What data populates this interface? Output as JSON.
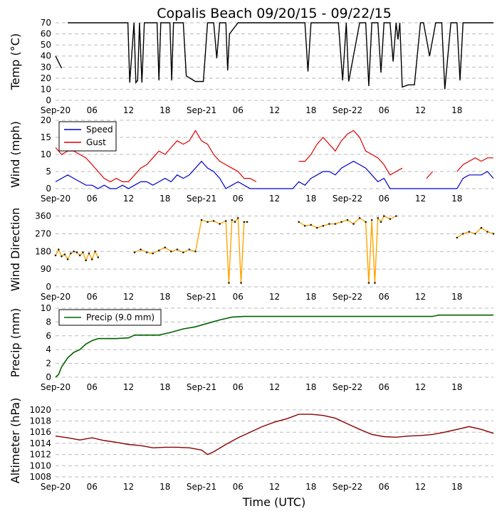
{
  "title": "Copalis Beach 09/20/15 - 09/22/15",
  "x_axis_label": "Time (UTC)",
  "x_tick_labels": [
    "Sep-20",
    "06",
    "12",
    "18",
    "Sep-21",
    "06",
    "12",
    "18",
    "Sep-22",
    "06",
    "12",
    "18"
  ],
  "colors": {
    "temp": "#000000",
    "speed": "#0000cc",
    "gust": "#dd0000",
    "dir": "#ffa500",
    "precip": "#006400",
    "alt": "#8b0000",
    "grid": "#bbbbbb"
  },
  "chart_data": [
    {
      "type": "line",
      "name": "temperature",
      "ylabel": "Temp (°C)",
      "ylim": [
        0,
        70
      ],
      "yticks": [
        "0",
        "10",
        "20",
        "30",
        "40",
        "50",
        "60",
        "70"
      ],
      "series": [
        {
          "name": "Temp",
          "x": [
            0,
            1,
            2,
            3,
            4,
            6,
            8,
            10,
            11.9,
            12.2,
            12.9,
            13.2,
            13.5,
            13.8,
            14.2,
            14.6,
            15,
            16.7,
            17,
            17.3,
            18.8,
            19.1,
            19.4,
            20.3,
            21,
            21.5,
            23,
            23.5,
            24.3,
            25,
            26,
            26.5,
            27,
            27.5,
            28,
            28.3,
            28.6,
            30,
            33,
            36,
            41,
            41.5,
            42,
            46.5,
            47.2,
            47.8,
            48.2,
            50,
            51,
            51.5,
            52,
            53,
            53.5,
            54,
            55,
            55.5,
            56,
            56.3,
            56.6,
            57,
            58,
            59,
            60,
            60.5,
            61.5,
            62.5,
            63,
            63.5,
            64,
            65,
            66,
            66.5,
            67,
            68,
            70,
            72
          ],
          "values": [
            40,
            29,
            70,
            70,
            70,
            70,
            70,
            70,
            70,
            16,
            70,
            16,
            18,
            70,
            16,
            70,
            70,
            70,
            18,
            70,
            70,
            18,
            70,
            70,
            70,
            22,
            17,
            17,
            17,
            70,
            70,
            38,
            70,
            70,
            70,
            27,
            60,
            70,
            70,
            70,
            70,
            26,
            70,
            70,
            18,
            70,
            17,
            70,
            70,
            13,
            70,
            70,
            25,
            70,
            70,
            35,
            70,
            55,
            70,
            12,
            14,
            14,
            70,
            70,
            40,
            70,
            70,
            70,
            10,
            70,
            70,
            18,
            70,
            70,
            70,
            70
          ]
        }
      ],
      "gaps_after": [
        1
      ]
    },
    {
      "type": "line",
      "name": "wind",
      "ylabel": "Wind (mph)",
      "ylim": [
        0,
        20
      ],
      "yticks": [
        "0",
        "5",
        "10",
        "15",
        "20"
      ],
      "legend": [
        "Speed",
        "Gust"
      ],
      "series": [
        {
          "name": "Speed",
          "x": [
            0,
            1,
            2,
            3,
            4,
            5,
            6,
            7,
            8,
            9,
            10,
            11,
            12,
            13,
            14,
            15,
            16,
            17,
            18,
            19,
            20,
            21,
            22,
            23,
            24,
            25,
            26,
            27,
            28,
            29,
            30,
            31,
            32,
            33,
            34,
            35,
            36,
            37,
            38,
            39,
            40,
            41,
            42,
            43,
            44,
            45,
            46,
            47,
            48,
            49,
            50,
            51,
            52,
            53,
            54,
            55,
            56,
            57,
            58,
            59,
            60,
            61,
            62,
            63,
            64,
            65,
            66,
            67,
            68,
            69,
            70,
            71,
            72
          ],
          "values": [
            2,
            3,
            4,
            3,
            2,
            1,
            1,
            0,
            1,
            0,
            0,
            1,
            0,
            1,
            2,
            2,
            1,
            2,
            3,
            2,
            4,
            3,
            4,
            6,
            8,
            6,
            5,
            3,
            0,
            1,
            2,
            1,
            0,
            0,
            0,
            0,
            0,
            0,
            0,
            0,
            2,
            1,
            3,
            4,
            5,
            5,
            4,
            6,
            7,
            8,
            7,
            6,
            4,
            2,
            3,
            0,
            0,
            0,
            0,
            0,
            0,
            0,
            0,
            0,
            0,
            0,
            0,
            3,
            4,
            4,
            4,
            5,
            3
          ]
        },
        {
          "name": "Gust",
          "x": [
            0,
            1,
            2,
            3,
            4,
            5,
            6,
            7,
            8,
            9,
            10,
            11,
            12,
            13,
            14,
            15,
            16,
            17,
            18,
            19,
            20,
            21,
            22,
            23,
            24,
            25,
            26,
            27,
            28,
            29,
            30,
            31,
            32,
            33,
            40,
            41,
            42,
            43,
            44,
            45,
            46,
            47,
            48,
            49,
            50,
            51,
            52,
            53,
            54,
            55,
            56,
            57,
            61,
            62,
            66,
            67,
            68,
            69,
            70,
            71,
            72
          ],
          "values": [
            12,
            10,
            11,
            11,
            10,
            9,
            7,
            5,
            3,
            2,
            3,
            2,
            2,
            4,
            6,
            7,
            9,
            11,
            10,
            12,
            14,
            13,
            14,
            17,
            14,
            13,
            10,
            8,
            7,
            6,
            5,
            3,
            3,
            2,
            8,
            8,
            10,
            13,
            15,
            13,
            11,
            14,
            16,
            17,
            15,
            11,
            10,
            9,
            7,
            4,
            5,
            6,
            3,
            5,
            5,
            7,
            8,
            9,
            8,
            9,
            9
          ]
        }
      ],
      "gust_gaps_after": [
        33,
        57,
        62
      ]
    },
    {
      "type": "scatter",
      "name": "wind_direction",
      "ylabel": "Wind Direction",
      "ylim": [
        0,
        380
      ],
      "yticks": [
        "0",
        "90",
        "180",
        "270",
        "360"
      ],
      "series": [
        {
          "name": "Direction",
          "x": [
            0,
            0.5,
            1,
            1.5,
            2,
            2.5,
            3,
            3.5,
            4,
            4.5,
            5,
            5.5,
            6,
            6.5,
            7,
            13,
            14,
            15,
            16,
            17,
            18,
            19,
            20,
            21,
            22,
            23,
            24,
            25,
            26,
            27,
            28,
            28.5,
            29,
            29.5,
            30,
            30.5,
            31,
            31.5,
            40,
            41,
            42,
            43,
            44,
            45,
            46,
            47,
            48,
            49,
            50,
            51,
            51.5,
            52,
            52.5,
            53,
            53.5,
            54,
            55,
            56,
            66,
            67,
            68,
            69,
            70,
            71,
            72
          ],
          "values": [
            160,
            190,
            155,
            165,
            140,
            170,
            180,
            175,
            160,
            175,
            135,
            170,
            140,
            180,
            150,
            175,
            190,
            175,
            170,
            185,
            200,
            180,
            190,
            175,
            190,
            180,
            340,
            330,
            335,
            320,
            335,
            20,
            340,
            330,
            350,
            20,
            330,
            330,
            330,
            310,
            315,
            300,
            310,
            320,
            320,
            330,
            340,
            320,
            350,
            330,
            20,
            340,
            20,
            350,
            330,
            360,
            345,
            360,
            250,
            270,
            280,
            270,
            300,
            280,
            270
          ]
        }
      ]
    },
    {
      "type": "line",
      "name": "precipitation",
      "ylabel": "Precip (mm)",
      "ylim": [
        0,
        10
      ],
      "yticks": [
        "0",
        "2",
        "4",
        "6",
        "8",
        "10"
      ],
      "legend": [
        "Precip (9.0 mm)"
      ],
      "series": [
        {
          "name": "Precip (9.0 mm)",
          "x": [
            0,
            0.5,
            1,
            2,
            3,
            4,
            5,
            6,
            7,
            8,
            10,
            12,
            13,
            15,
            17,
            19,
            21,
            23,
            25,
            27,
            29,
            31,
            41,
            50,
            55,
            62,
            63,
            72
          ],
          "values": [
            0,
            0.4,
            1.5,
            2.8,
            3.6,
            4.0,
            4.8,
            5.3,
            5.6,
            5.6,
            5.6,
            5.7,
            6.1,
            6.1,
            6.1,
            6.5,
            7.0,
            7.3,
            7.8,
            8.3,
            8.7,
            8.8,
            8.8,
            8.8,
            8.8,
            8.8,
            9.0,
            9.0
          ]
        }
      ]
    },
    {
      "type": "line",
      "name": "altimeter",
      "ylabel": "Altimeter (hPa)",
      "ylim": [
        1008,
        1021
      ],
      "yticks": [
        "1008",
        "1010",
        "1012",
        "1014",
        "1016",
        "1018",
        "1020"
      ],
      "series": [
        {
          "name": "Altimeter",
          "x": [
            0,
            2,
            4,
            6,
            8,
            10,
            12,
            14,
            16,
            18,
            20,
            22,
            24,
            25,
            26,
            28,
            30,
            32,
            34,
            36,
            38,
            40,
            42,
            44,
            46,
            48,
            50,
            52,
            54,
            56,
            58,
            60,
            62,
            64,
            66,
            68,
            70,
            72
          ],
          "values": [
            1015.3,
            1015.0,
            1014.6,
            1015.0,
            1014.5,
            1014.2,
            1013.8,
            1013.6,
            1013.2,
            1013.3,
            1013.3,
            1013.2,
            1012.8,
            1012.0,
            1012.5,
            1013.8,
            1015.0,
            1016.0,
            1017.0,
            1017.8,
            1018.4,
            1019.2,
            1019.2,
            1019.0,
            1018.5,
            1017.5,
            1016.5,
            1015.6,
            1015.2,
            1015.1,
            1015.3,
            1015.4,
            1015.6,
            1016.0,
            1016.5,
            1017.0,
            1016.5,
            1015.8
          ]
        }
      ]
    }
  ]
}
